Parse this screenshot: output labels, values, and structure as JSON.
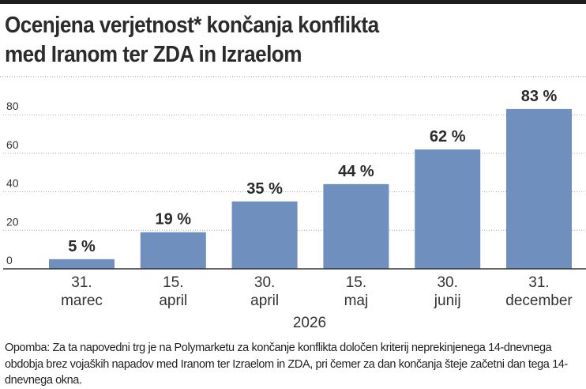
{
  "title": {
    "line1": "Ocenjena verjetnost* končanja konflikta",
    "line2": "med Iranom ter ZDA in Izraelom"
  },
  "chart_data": {
    "type": "bar",
    "categories": [
      [
        "31.",
        "marec"
      ],
      [
        "15.",
        "april"
      ],
      [
        "30.",
        "april"
      ],
      [
        "15.",
        "maj"
      ],
      [
        "30.",
        "junij"
      ],
      [
        "31.",
        "december"
      ]
    ],
    "values": [
      5,
      19,
      35,
      44,
      62,
      83
    ],
    "data_labels": [
      "5 %",
      "19 %",
      "35 %",
      "44 %",
      "62 %",
      "83 %"
    ],
    "xlabel": "2026",
    "ylabel": "",
    "ylim": [
      0,
      100
    ],
    "yticks": [
      0,
      20,
      40,
      60,
      80
    ],
    "grid": true,
    "bar_color": "#6f8fbf"
  },
  "note": "Opomba: Za ta napovedni trg je na Polymarketu za končanje konflikta določen kriterij neprekinjenega 14-dnevnega obdobja brez vojaških napadov med Iranom ter Izraelom in ZDA, pri čemer za dan končanja šteje začetni dan tega 14-dnevnega okna."
}
